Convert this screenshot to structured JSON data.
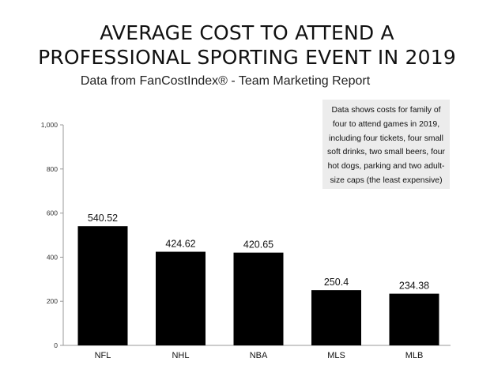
{
  "chart_data": {
    "type": "bar",
    "title_lines": [
      "AVERAGE COST TO ATTEND A",
      "PROFESSIONAL SPORTING EVENT IN 2019"
    ],
    "subtitle": "Data from FanCostIndex® - Team Marketing Report",
    "note": "Data shows costs for family of four to attend games in 2019, including four tickets, four small soft drinks, two small beers, four hot dogs, parking and two adult-size caps (the least expensive)",
    "categories": [
      "NFL",
      "NHL",
      "NBA",
      "MLS",
      "MLB"
    ],
    "values": [
      540.52,
      424.62,
      420.65,
      250.4,
      234.38
    ],
    "value_labels": [
      "540.52",
      "424.62",
      "420.65",
      "250.4",
      "234.38"
    ],
    "yticks": [
      0,
      200,
      400,
      600,
      800,
      1000
    ],
    "ytick_labels": [
      "0",
      "200",
      "400",
      "600",
      "800",
      "1,000"
    ],
    "ylim": [
      0,
      1000
    ],
    "xlabel": "",
    "ylabel": "",
    "grid": false,
    "bar_color": "#000000"
  }
}
